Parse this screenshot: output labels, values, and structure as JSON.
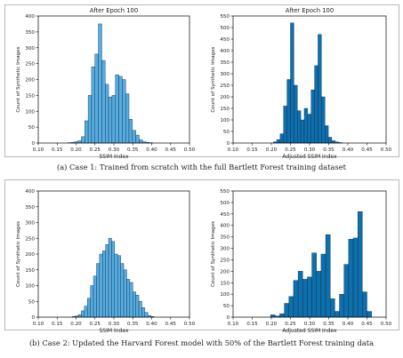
{
  "captions": {
    "a": "(a) Case 1: Trained from scratch with the full Bartlett Forest training dataset",
    "b": "(b) Case 2: Updated the Harvard Forest model with 50% of the Bartlett Forest training data"
  },
  "colors": {
    "light": "#56ace0",
    "dark": "#0e6fad",
    "edge": "#0b2940"
  },
  "chart_data": [
    {
      "type": "bar",
      "title": "After Epoch 100",
      "xlabel": "SSIM Index",
      "ylabel": "Count of Synthetic Images",
      "xlim": [
        0.1,
        0.5
      ],
      "ylim": [
        0,
        400
      ],
      "xticks": [
        "0.10",
        "0.15",
        "0.20",
        "0.25",
        "0.30",
        "0.35",
        "0.40",
        "0.45",
        "0.50"
      ],
      "yticks": [
        "0",
        "50",
        "100",
        "150",
        "200",
        "250",
        "300",
        "350",
        "400"
      ],
      "bin_edges": [
        0.178,
        0.187,
        0.196,
        0.205,
        0.214,
        0.223,
        0.232,
        0.241,
        0.25,
        0.259,
        0.268,
        0.277,
        0.286,
        0.295,
        0.304,
        0.313,
        0.322,
        0.331,
        0.34,
        0.349,
        0.358,
        0.367,
        0.376,
        0.385,
        0.394,
        0.403
      ],
      "values": [
        1,
        2,
        4,
        7,
        20,
        70,
        150,
        240,
        280,
        375,
        260,
        185,
        145,
        150,
        215,
        210,
        200,
        155,
        75,
        40,
        25,
        10,
        4,
        2,
        1
      ],
      "color": "light"
    },
    {
      "type": "bar",
      "title": "After Epoch 100",
      "xlabel": "Adjusted SSIM Index",
      "ylabel": "Count of Synthetic Images",
      "xlim": [
        0.1,
        0.5
      ],
      "ylim": [
        0,
        550
      ],
      "xticks": [
        "0.10",
        "0.15",
        "0.20",
        "0.25",
        "0.30",
        "0.35",
        "0.40",
        "0.45",
        "0.50"
      ],
      "yticks": [
        "0",
        "50",
        "100",
        "150",
        "200",
        "250",
        "300",
        "350",
        "400",
        "450",
        "500",
        "550"
      ],
      "bin_edges": [
        0.205,
        0.214,
        0.223,
        0.232,
        0.241,
        0.25,
        0.259,
        0.268,
        0.277,
        0.286,
        0.295,
        0.304,
        0.313,
        0.322,
        0.331,
        0.34,
        0.349,
        0.358,
        0.367,
        0.376,
        0.385
      ],
      "values": [
        5,
        15,
        40,
        160,
        275,
        520,
        250,
        140,
        100,
        150,
        125,
        230,
        335,
        470,
        200,
        75,
        25,
        10,
        5,
        2
      ],
      "color": "dark"
    },
    {
      "type": "bar",
      "title": "",
      "xlabel": "SSIM Index",
      "ylabel": "Count of Synthetic Images",
      "xlim": [
        0.1,
        0.5
      ],
      "ylim": [
        0,
        400
      ],
      "xticks": [
        "0.10",
        "0.15",
        "0.20",
        "0.25",
        "0.30",
        "0.35",
        "0.40",
        "0.45",
        "0.50"
      ],
      "yticks": [
        "0",
        "50",
        "100",
        "150",
        "200",
        "250",
        "300",
        "350",
        "400"
      ],
      "bin_edges": [
        0.19,
        0.198,
        0.206,
        0.214,
        0.222,
        0.23,
        0.238,
        0.246,
        0.254,
        0.262,
        0.27,
        0.278,
        0.286,
        0.294,
        0.302,
        0.31,
        0.318,
        0.326,
        0.334,
        0.342,
        0.35,
        0.358,
        0.366,
        0.374,
        0.382,
        0.39,
        0.398,
        0.406
      ],
      "values": [
        2,
        4,
        8,
        20,
        35,
        60,
        100,
        130,
        170,
        200,
        210,
        230,
        250,
        240,
        200,
        195,
        170,
        150,
        120,
        110,
        80,
        70,
        50,
        30,
        15,
        5,
        2
      ],
      "color": "light"
    },
    {
      "type": "bar",
      "title": "",
      "xlabel": "Adjusted SSIM Index",
      "ylabel": "Count of Synthetic Images",
      "xlim": [
        0.1,
        0.5
      ],
      "ylim": [
        0,
        550
      ],
      "xticks": [
        "0.10",
        "0.15",
        "0.20",
        "0.25",
        "0.30",
        "0.35",
        "0.40",
        "0.45",
        "0.50"
      ],
      "yticks": [
        "0",
        "50",
        "100",
        "150",
        "200",
        "250",
        "300",
        "350",
        "400",
        "450",
        "500",
        "550"
      ],
      "bin_edges": [
        0.198,
        0.21,
        0.222,
        0.234,
        0.246,
        0.258,
        0.27,
        0.282,
        0.294,
        0.306,
        0.318,
        0.33,
        0.342,
        0.354,
        0.366,
        0.378,
        0.39,
        0.402,
        0.414,
        0.426,
        0.438,
        0.45,
        0.462
      ],
      "values": [
        10,
        5,
        15,
        60,
        90,
        160,
        200,
        165,
        175,
        280,
        200,
        275,
        360,
        80,
        25,
        100,
        230,
        340,
        345,
        460,
        110,
        25
      ],
      "color": "dark"
    }
  ]
}
